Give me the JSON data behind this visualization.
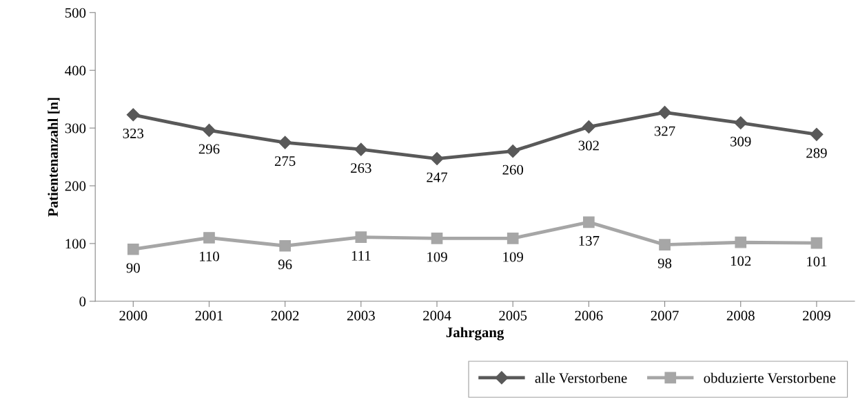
{
  "chart_data": {
    "type": "line",
    "xlabel": "Jahrgang",
    "ylabel": "Patientenanzahl [n]",
    "categories": [
      "2000",
      "2001",
      "2002",
      "2003",
      "2004",
      "2005",
      "2006",
      "2007",
      "2008",
      "2009"
    ],
    "series": [
      {
        "name": "alle Verstorbene",
        "color": "#595959",
        "marker": "diamond",
        "values": [
          323,
          296,
          275,
          263,
          247,
          260,
          302,
          327,
          309,
          289
        ]
      },
      {
        "name": "obduzierte Verstorbene",
        "color": "#a6a6a6",
        "marker": "square",
        "values": [
          90,
          110,
          96,
          111,
          109,
          109,
          137,
          98,
          102,
          101
        ]
      }
    ],
    "ylim": [
      0,
      500
    ],
    "yticks": [
      0,
      100,
      200,
      300,
      400,
      500
    ],
    "data_labels": true,
    "legend": "bottom",
    "grid": false,
    "line_style": "solid"
  }
}
